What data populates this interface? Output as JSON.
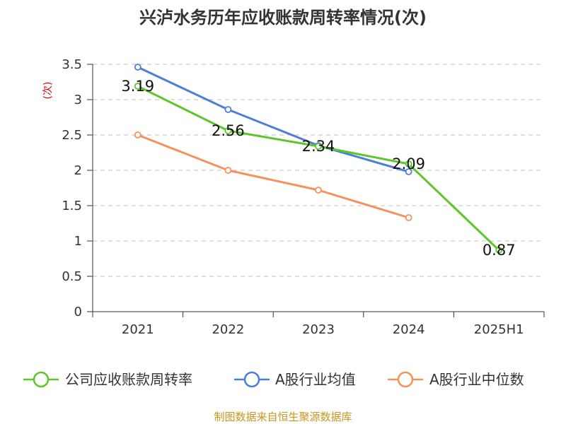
{
  "chart_data": {
    "type": "line",
    "title": "兴泸水务历年应收账款周转率情况(次)",
    "xlabel": "",
    "ylabel": "(次)",
    "categories": [
      "2021",
      "2022",
      "2023",
      "2024",
      "2025H1"
    ],
    "ylim": [
      0,
      3.5
    ],
    "yticks": [
      "0",
      "0.5",
      "1",
      "1.5",
      "2",
      "2.5",
      "3",
      "3.5"
    ],
    "grid": true,
    "legend_position": "bottom",
    "series": [
      {
        "name": "公司应收账款周转率",
        "color": "#5cc62b",
        "values": [
          3.19,
          2.56,
          2.34,
          2.09,
          0.87
        ],
        "labels": [
          "3.19",
          "2.56",
          "2.34",
          "2.09",
          "0.87"
        ]
      },
      {
        "name": "A股行业均值",
        "color": "#4d7ed8",
        "values": [
          3.46,
          2.86,
          2.35,
          1.98,
          null
        ]
      },
      {
        "name": "A股行业中位数",
        "color": "#f5915c",
        "values": [
          2.5,
          2.0,
          1.72,
          1.33,
          null
        ]
      }
    ]
  },
  "source_text": "制图数据来自恒生聚源数据库",
  "colors": {
    "axis": "#333333",
    "grid": "#cccccc",
    "ylabel": "#dd0000",
    "source": "#c8951e"
  }
}
